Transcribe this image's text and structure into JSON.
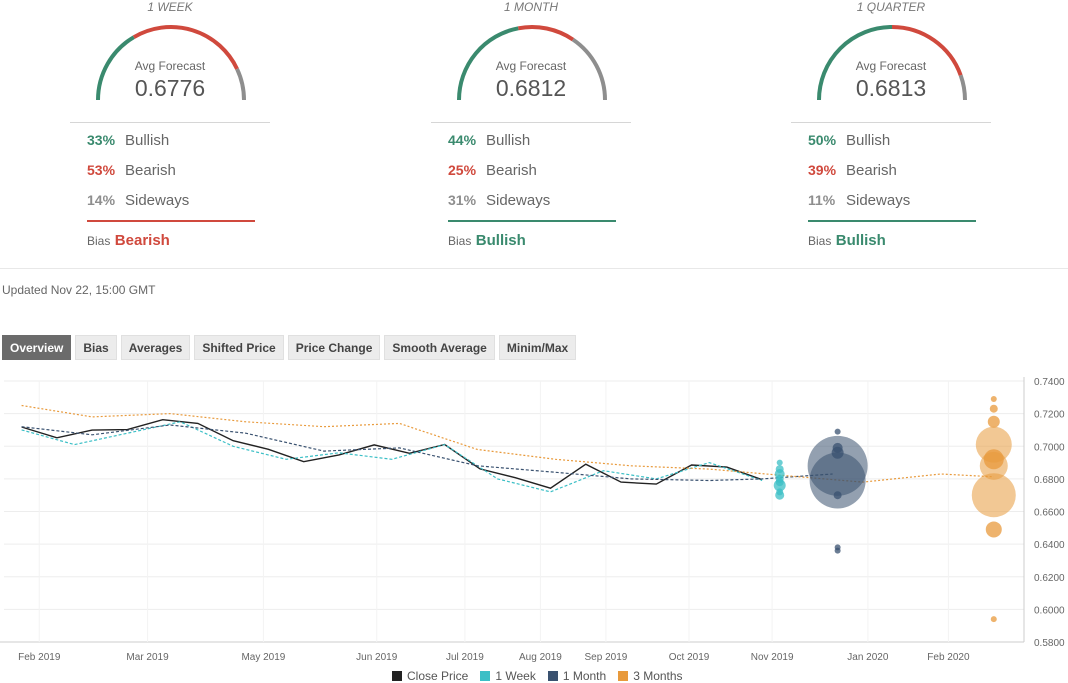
{
  "colors": {
    "bullish": "#3a8a6e",
    "bearish": "#d0493d",
    "sideways": "#8e8e8e",
    "close": "#222222",
    "week": "#3bbfc6",
    "month": "#3a5270",
    "quarter": "#e89a3c"
  },
  "panels": [
    {
      "period": "1 WEEK",
      "avg_label": "Avg Forecast",
      "avg_value": "0.6776",
      "bullish_pct": "33%",
      "bearish_pct": "53%",
      "sideways_pct": "14%",
      "bullish_label": "Bullish",
      "bearish_label": "Bearish",
      "sideways_label": "Sideways",
      "bias_label": "Bias",
      "bias": "Bearish",
      "gauge": {
        "bullish": 0.33,
        "bearish": 0.53,
        "sideways": 0.14
      }
    },
    {
      "period": "1 MONTH",
      "avg_label": "Avg Forecast",
      "avg_value": "0.6812",
      "bullish_pct": "44%",
      "bearish_pct": "25%",
      "sideways_pct": "31%",
      "bullish_label": "Bullish",
      "bearish_label": "Bearish",
      "sideways_label": "Sideways",
      "bias_label": "Bias",
      "bias": "Bullish",
      "gauge": {
        "bullish": 0.44,
        "bearish": 0.25,
        "sideways": 0.31
      }
    },
    {
      "period": "1 QUARTER",
      "avg_label": "Avg Forecast",
      "avg_value": "0.6813",
      "bullish_pct": "50%",
      "bearish_pct": "39%",
      "sideways_pct": "11%",
      "bullish_label": "Bullish",
      "bearish_label": "Bearish",
      "sideways_label": "Sideways",
      "bias_label": "Bias",
      "bias": "Bullish",
      "gauge": {
        "bullish": 0.5,
        "bearish": 0.39,
        "sideways": 0.11
      }
    }
  ],
  "updated": "Updated Nov 22, 15:00 GMT",
  "tabs": [
    "Overview",
    "Bias",
    "Averages",
    "Shifted Price",
    "Price Change",
    "Smooth Average",
    "Minim/Max"
  ],
  "active_tab": "Overview",
  "chart_data": {
    "type": "line",
    "x_ticks": [
      "Feb 2019",
      "Mar 2019",
      "May 2019",
      "Jun 2019",
      "Jul 2019",
      "Aug 2019",
      "Sep 2019",
      "Oct 2019",
      "Nov 2019",
      "Jan 2020",
      "Feb 2020"
    ],
    "y_ticks": [
      "0.7400",
      "0.7200",
      "0.7000",
      "0.6800",
      "0.6600",
      "0.6400",
      "0.6200",
      "0.6000",
      "0.5800"
    ],
    "ylim": [
      0.58,
      0.74
    ],
    "grid": true,
    "legend_position": "bottom",
    "series": [
      {
        "name": "Close Price",
        "style": "solid",
        "x": [
          "2019-02-01",
          "2019-02-15",
          "2019-03-01",
          "2019-03-15",
          "2019-03-29",
          "2019-04-12",
          "2019-04-26",
          "2019-05-10",
          "2019-05-24",
          "2019-06-07",
          "2019-06-21",
          "2019-07-05",
          "2019-07-19",
          "2019-08-02",
          "2019-08-16",
          "2019-08-30",
          "2019-09-13",
          "2019-09-27",
          "2019-10-11",
          "2019-10-25",
          "2019-11-08",
          "2019-11-22"
        ],
        "y": [
          0.7118,
          0.7052,
          0.7099,
          0.7102,
          0.7163,
          0.714,
          0.7034,
          0.6981,
          0.6905,
          0.6947,
          0.7008,
          0.6957,
          0.7011,
          0.6861,
          0.6807,
          0.6743,
          0.689,
          0.678,
          0.6768,
          0.6885,
          0.6872,
          0.6795
        ]
      },
      {
        "name": "1 Week",
        "style": "dashed",
        "x": [
          "2019-02-01",
          "2019-02-22",
          "2019-03-15",
          "2019-04-05",
          "2019-04-26",
          "2019-05-17",
          "2019-06-07",
          "2019-06-28",
          "2019-07-19",
          "2019-08-09",
          "2019-08-30",
          "2019-09-20",
          "2019-10-11",
          "2019-11-01",
          "2019-11-22"
        ],
        "y": [
          0.71,
          0.701,
          0.708,
          0.715,
          0.7,
          0.692,
          0.696,
          0.692,
          0.701,
          0.68,
          0.672,
          0.685,
          0.68,
          0.69,
          0.679
        ]
      },
      {
        "name": "1 Month",
        "style": "dashed",
        "x": [
          "2019-02-01",
          "2019-03-01",
          "2019-04-01",
          "2019-05-01",
          "2019-06-01",
          "2019-07-01",
          "2019-08-01",
          "2019-09-01",
          "2019-10-01",
          "2019-11-01",
          "2019-11-22",
          "2019-12-20"
        ],
        "y": [
          0.712,
          0.707,
          0.713,
          0.708,
          0.697,
          0.699,
          0.688,
          0.684,
          0.68,
          0.679,
          0.68,
          0.683
        ]
      },
      {
        "name": "3 Months",
        "style": "dotted",
        "x": [
          "2019-02-01",
          "2019-03-01",
          "2019-04-01",
          "2019-05-01",
          "2019-06-01",
          "2019-07-01",
          "2019-08-01",
          "2019-09-01",
          "2019-10-01",
          "2019-11-01",
          "2019-12-01",
          "2020-01-01",
          "2020-02-01",
          "2020-02-22"
        ],
        "y": [
          0.725,
          0.718,
          0.72,
          0.715,
          0.712,
          0.714,
          0.698,
          0.692,
          0.688,
          0.686,
          0.682,
          0.678,
          0.683,
          0.6813
        ]
      }
    ],
    "forecast_bubbles": [
      {
        "series": "1 Week",
        "date": "2019-11-29",
        "values": [
          0.676,
          0.67,
          0.683,
          0.686,
          0.678,
          0.672,
          0.68,
          0.69
        ]
      },
      {
        "series": "1 Month",
        "date": "2019-12-22",
        "values": [
          0.688,
          0.679,
          0.67,
          0.696,
          0.699,
          0.638,
          0.636,
          0.709
        ]
      },
      {
        "series": "3 Months",
        "date": "2020-02-22",
        "values": [
          0.701,
          0.67,
          0.688,
          0.692,
          0.649,
          0.715,
          0.723,
          0.729,
          0.594
        ]
      }
    ]
  },
  "legend": [
    "Close Price",
    "1 Week",
    "1 Month",
    "3 Months"
  ]
}
